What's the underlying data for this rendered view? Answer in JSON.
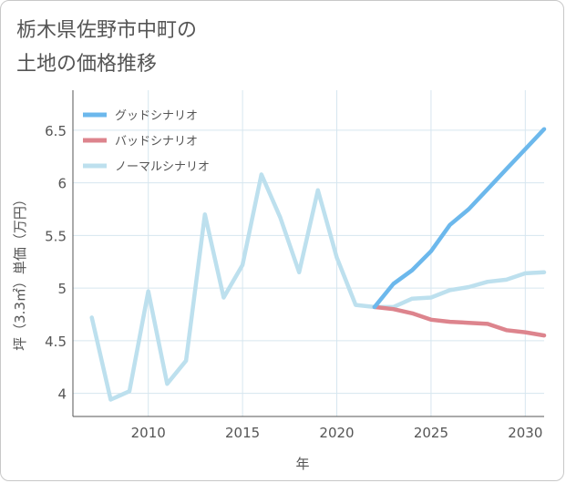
{
  "title": {
    "line1": "栃木県佐野市中町の",
    "line2": "土地の価格推移"
  },
  "colors": {
    "good": "#6cb8ec",
    "bad": "#dd848d",
    "normal": "#bde0ee",
    "grid": "#d6e6ef",
    "axis": "#555555",
    "text": "#555555"
  },
  "chart_data": {
    "type": "line",
    "title": "栃木県佐野市中町の土地の価格推移",
    "xlabel": "年",
    "ylabel": "坪（3.3㎡）単価（万円）",
    "xlim": [
      2006,
      2031
    ],
    "ylim": [
      3.78,
      6.88
    ],
    "x_ticks": [
      2010,
      2015,
      2020,
      2025,
      2030
    ],
    "y_ticks": [
      4,
      4.5,
      5,
      5.5,
      6,
      6.5
    ],
    "x_tick_labels": [
      "2010",
      "2015",
      "2020",
      "2025",
      "2030"
    ],
    "y_tick_labels": [
      "4",
      "4.5",
      "5",
      "5.5",
      "6",
      "6.5"
    ],
    "grid": true,
    "legend_position": "top-left",
    "series": [
      {
        "name": "グッドシナリオ",
        "color": "#6cb8ec",
        "x": [
          2022,
          2023,
          2024,
          2025,
          2026,
          2027,
          2028,
          2029,
          2030,
          2031
        ],
        "values": [
          4.82,
          5.04,
          5.17,
          5.35,
          5.6,
          5.75,
          5.94,
          6.13,
          6.32,
          6.51
        ]
      },
      {
        "name": "バッドシナリオ",
        "color": "#dd848d",
        "x": [
          2022,
          2023,
          2024,
          2025,
          2026,
          2027,
          2028,
          2029,
          2030,
          2031
        ],
        "values": [
          4.82,
          4.8,
          4.76,
          4.7,
          4.68,
          4.67,
          4.66,
          4.6,
          4.58,
          4.55
        ]
      },
      {
        "name": "ノーマルシナリオ",
        "color": "#bde0ee",
        "x": [
          2007,
          2008,
          2009,
          2010,
          2011,
          2012,
          2013,
          2014,
          2015,
          2016,
          2017,
          2018,
          2019,
          2020,
          2021,
          2022,
          2023,
          2024,
          2025,
          2026,
          2027,
          2028,
          2029,
          2030,
          2031
        ],
        "values": [
          4.72,
          3.94,
          4.02,
          4.97,
          4.09,
          4.31,
          5.7,
          4.91,
          5.22,
          6.08,
          5.67,
          5.15,
          5.93,
          5.29,
          4.84,
          4.82,
          4.82,
          4.9,
          4.91,
          4.98,
          5.01,
          5.06,
          5.08,
          5.14,
          5.15
        ]
      }
    ]
  }
}
